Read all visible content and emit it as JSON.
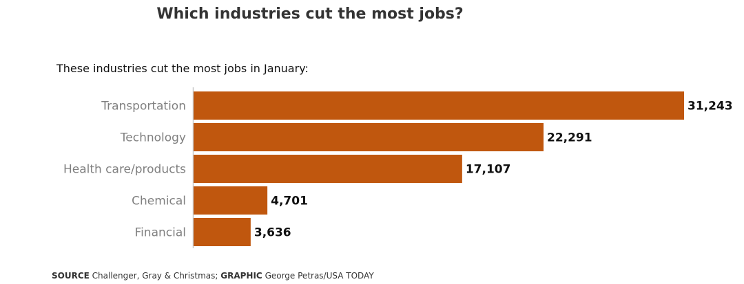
{
  "chart_data": {
    "type": "bar",
    "orientation": "horizontal",
    "title": "Which industries cut the most jobs?",
    "subtitle": "These industries cut the most jobs in January:",
    "categories": [
      "Transportation",
      "Technology",
      "Health care/products",
      "Chemical",
      "Financial"
    ],
    "values": [
      31243,
      22291,
      17107,
      4701,
      3636
    ],
    "value_labels": [
      "31,243",
      "22,291",
      "17,107",
      "4,701",
      "3,636"
    ],
    "xlim": [
      0,
      31243
    ],
    "grid": false,
    "bar_color": "#C0570E",
    "axis_color": "#C8C8C8"
  },
  "footer": {
    "source_label": "SOURCE",
    "source_text": " Challenger, Gray & Christmas; ",
    "graphic_label": "GRAPHIC",
    "graphic_text": " George Petras/USA TODAY"
  }
}
